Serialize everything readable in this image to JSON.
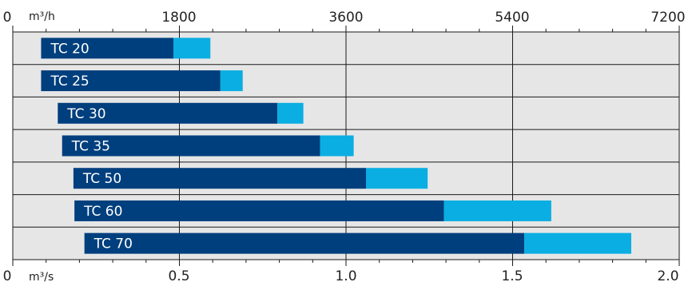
{
  "chart_data": {
    "type": "bar",
    "orientation": "horizontal",
    "stacked": true,
    "title": "",
    "categories": [
      "TC 20",
      "TC 25",
      "TC 30",
      "TC 35",
      "TC 50",
      "TC 60",
      "TC 70"
    ],
    "series": [
      {
        "start": [
          0.085,
          0.085,
          0.135,
          0.148,
          0.182,
          0.185,
          0.215
        ],
        "end": [
          0.482,
          0.623,
          0.794,
          0.922,
          1.06,
          1.294,
          1.535
        ],
        "color": "#003f7d"
      },
      {
        "start": [
          0.482,
          0.623,
          0.794,
          0.922,
          1.06,
          1.294,
          1.535
        ],
        "end": [
          0.593,
          0.69,
          0.872,
          1.023,
          1.245,
          1.616,
          1.856
        ],
        "color": "#0aaee2"
      }
    ],
    "top_axis": {
      "unit": "m³/h",
      "ticks": [
        "0",
        "1800",
        "3600",
        "5400",
        "7200"
      ],
      "range": [
        0,
        7200
      ]
    },
    "bottom_axis": {
      "unit": "m³/s",
      "ticks": [
        "0",
        "0.5",
        "1.0",
        "1.5",
        "2.0"
      ],
      "range": [
        0,
        2.0
      ]
    },
    "grid": true,
    "colors": {
      "plot_background": "#e6e6e6",
      "grid": "#1a1a1a"
    }
  }
}
